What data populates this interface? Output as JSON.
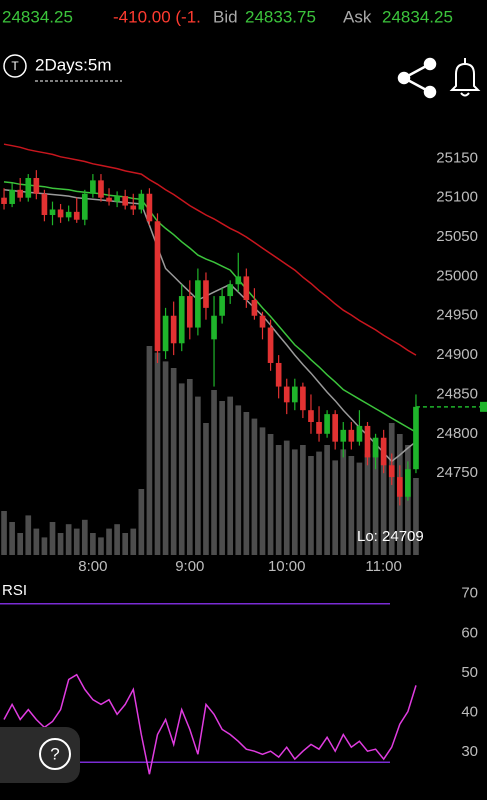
{
  "header": {
    "last": "24834.25",
    "change": "-410.00 (-1.",
    "bid_label": "Bid",
    "bid": "24833.75",
    "ask_label": "Ask",
    "ask": "24834.25"
  },
  "toolbar": {
    "icon": "T",
    "interval": "2Days:5m",
    "help": "?"
  },
  "chart_data": [
    {
      "type": "candlestick",
      "up_color": "#1fb52b",
      "down_color": "#e23232",
      "volume_color": "#5a5a5a",
      "xlim": [
        -0.5,
        51.5
      ],
      "xticks": [
        {
          "value": 11,
          "label": "8:00"
        },
        {
          "value": 23,
          "label": "9:00"
        },
        {
          "value": 35,
          "label": "10:00"
        },
        {
          "value": 47,
          "label": "11:00"
        }
      ],
      "ylim": [
        24646,
        25186
      ],
      "yticks": [
        25150,
        25100,
        25050,
        25000,
        24950,
        24900,
        24850,
        24800,
        24750
      ],
      "annotation": "Lo: 24709",
      "open": [
        25100,
        25092,
        25110,
        25100,
        25125,
        25105,
        25078,
        25085,
        25075,
        25082,
        25072,
        25105,
        25122,
        25100,
        25095,
        25102,
        25090,
        25085,
        25105,
        25070,
        24905,
        24950,
        24915,
        24975,
        24935,
        24995,
        24920,
        24950,
        24975,
        24990,
        25000,
        24970,
        24950,
        24935,
        24890,
        24860,
        24840,
        24860,
        24830,
        24815,
        24800,
        24825,
        24790,
        24805,
        24790,
        24810,
        24770,
        24795,
        24760,
        24745,
        24720,
        24755
      ],
      "high": [
        25112,
        25118,
        25125,
        25130,
        25135,
        25110,
        25095,
        25092,
        25090,
        25100,
        25110,
        25130,
        25130,
        25112,
        25108,
        25110,
        25105,
        25110,
        25112,
        25080,
        24960,
        24968,
        24990,
        24995,
        25010,
        25005,
        24975,
        24985,
        24995,
        25030,
        25010,
        24985,
        24955,
        24945,
        24900,
        24870,
        24870,
        24865,
        24850,
        24835,
        24830,
        24830,
        24815,
        24815,
        24830,
        24815,
        24800,
        24805,
        24775,
        24760,
        24765,
        24850
      ],
      "low": [
        25085,
        25088,
        25095,
        25095,
        25098,
        25070,
        25065,
        25068,
        25070,
        25068,
        25065,
        25100,
        25095,
        25090,
        25088,
        25085,
        25078,
        25080,
        25065,
        24890,
        24895,
        24900,
        24905,
        24920,
        24925,
        24945,
        24860,
        24940,
        24965,
        24980,
        24960,
        24945,
        24920,
        24880,
        24845,
        24825,
        24830,
        24820,
        24800,
        24790,
        24795,
        24780,
        24770,
        24780,
        24785,
        24760,
        24755,
        24750,
        24735,
        24709,
        24715,
        24750
      ],
      "close": [
        25092,
        25110,
        25100,
        25125,
        25105,
        25078,
        25085,
        25075,
        25082,
        25072,
        25105,
        25122,
        25100,
        25095,
        25102,
        25090,
        25085,
        25105,
        25070,
        24905,
        24950,
        24915,
        24975,
        24935,
        24995,
        24960,
        24950,
        24975,
        24990,
        25000,
        24970,
        24950,
        24935,
        24890,
        24860,
        24840,
        24860,
        24830,
        24815,
        24800,
        24825,
        24790,
        24805,
        24790,
        24810,
        24770,
        24795,
        24760,
        24745,
        24720,
        24755,
        24834.25
      ],
      "volume": [
        20,
        15,
        10,
        18,
        12,
        8,
        15,
        10,
        14,
        12,
        16,
        10,
        8,
        12,
        14,
        10,
        12,
        30,
        95,
        92,
        88,
        85,
        78,
        80,
        72,
        60,
        75,
        70,
        72,
        68,
        65,
        62,
        58,
        55,
        50,
        52,
        48,
        50,
        45,
        47,
        50,
        43,
        48,
        45,
        42,
        46,
        50,
        52,
        60,
        55,
        50,
        35
      ],
      "series": [
        {
          "color": "#c8161e",
          "values": [
            25168,
            25166,
            25164,
            25161,
            25159,
            25157,
            25155,
            25152,
            25150,
            25148,
            25146,
            25143,
            25141,
            25139,
            25137,
            25134,
            25132,
            25130,
            25123,
            25117,
            25110,
            25104,
            25097,
            25090,
            25084,
            25078,
            25073,
            25067,
            25061,
            25056,
            25050,
            25043,
            25036,
            25029,
            25022,
            25015,
            25008,
            24999,
            24991,
            24982,
            24974,
            24965,
            24957,
            24951,
            24944,
            24938,
            24932,
            24925,
            24919,
            24913,
            24906,
            24900
          ]
        },
        {
          "color": "#3cc43c",
          "values": [
            25120,
            25119,
            25117,
            25116,
            25115,
            25114,
            25112,
            25111,
            25110,
            25108,
            25107,
            25106,
            25105,
            25103,
            25102,
            25101,
            25099,
            25098,
            25084,
            25070,
            25061,
            25053,
            25044,
            25036,
            25027,
            25022,
            25018,
            25013,
            25008,
            24996,
            24984,
            24972,
            24960,
            24949,
            24937,
            24925,
            24913,
            24904,
            24894,
            24885,
            24875,
            24866,
            24856,
            24850,
            24844,
            24838,
            24832,
            24826,
            24820,
            24814,
            24808,
            24802
          ]
        },
        {
          "color": "#9a9a9a",
          "values": [
            25110,
            25109,
            25108,
            25107,
            25106,
            25105,
            25104,
            25103,
            25102,
            25100,
            25099,
            25098,
            25097,
            25096,
            25095,
            25094,
            25093,
            25092,
            25065,
            25037,
            25010,
            25000,
            24990,
            24980,
            24970,
            24975,
            24980,
            24985,
            24990,
            24980,
            24970,
            24960,
            24950,
            24938,
            24925,
            24913,
            24900,
            24888,
            24877,
            24865,
            24853,
            24842,
            24830,
            24819,
            24808,
            24798,
            24787,
            24776,
            24765,
            24773,
            24782,
            24790
          ]
        }
      ]
    },
    {
      "type": "line",
      "title": "RSI",
      "color": "#e03ce0",
      "hline_color": "#7a2cd4",
      "xlim": [
        -0.5,
        51.5
      ],
      "ylim": [
        23,
        76
      ],
      "yticks": [
        70,
        60,
        50,
        40,
        30
      ],
      "hlines": [
        70,
        30
      ],
      "values": [
        40.8,
        44.6,
        40.8,
        43.3,
        40.8,
        38.8,
        40.3,
        43.3,
        50.9,
        52.1,
        48.4,
        45.8,
        44.6,
        45.8,
        42.1,
        44.6,
        48.4,
        37,
        27,
        37,
        40.8,
        34.5,
        43.3,
        38.3,
        32,
        44.6,
        42.1,
        38.3,
        37,
        35.3,
        33.3,
        32.8,
        32,
        32.8,
        31.3,
        33.8,
        30.8,
        32.8,
        34.5,
        33.3,
        36.3,
        32.8,
        37,
        33.8,
        35.3,
        32.8,
        33.3,
        30.8,
        33.8,
        39.6,
        42.8,
        49.4
      ]
    }
  ]
}
